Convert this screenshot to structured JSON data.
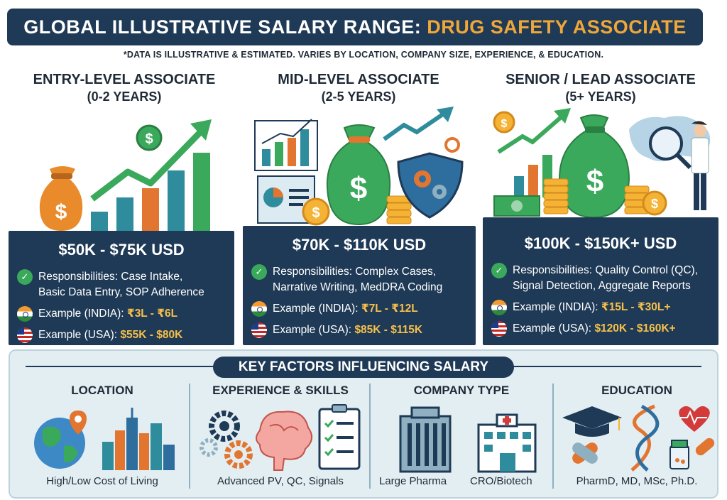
{
  "header": {
    "title_main": "GLOBAL ILLUSTRATIVE SALARY RANGE:",
    "title_accent": "DRUG SAFETY ASSOCIATE",
    "disclaimer": "*DATA IS ILLUSTRATIVE & ESTIMATED. VARIES BY LOCATION, COMPANY SIZE, EXPERIENCE, & EDUCATION."
  },
  "tiers": [
    {
      "title": "ENTRY-LEVEL ASSOCIATE",
      "years": "(0-2 YEARS)",
      "range": "$50K - $75K USD",
      "resp_label": "Responsibilities:",
      "resp_line1": "Case Intake,",
      "resp_line2": "Basic Data Entry, SOP Adherence",
      "india_label": "Example (INDIA):",
      "india_value": "₹3L - ₹6L",
      "usa_label": "Example (USA):",
      "usa_value": "$55K - $80K"
    },
    {
      "title": "MID-LEVEL ASSOCIATE",
      "years": "(2-5 YEARS)",
      "range": "$70K - $110K USD",
      "resp_label": "Responsibilities:",
      "resp_line1": "Complex Cases,",
      "resp_line2": "Narrative Writing, MedDRA Coding",
      "india_label": "Example (INDIA):",
      "india_value": "₹7L - ₹12L",
      "usa_label": "Example (USA):",
      "usa_value": "$85K - $115K"
    },
    {
      "title": "SENIOR / LEAD ASSOCIATE",
      "years": "(5+ YEARS)",
      "range": "$100K - $150K+ USD",
      "resp_label": "Responsibilities:",
      "resp_line1": "Quality Control (QC),",
      "resp_line2": "Signal Detection, Aggregate Reports",
      "india_label": "Example (INDIA):",
      "india_value": "₹15L - ₹30L+",
      "usa_label": "Example (USA):",
      "usa_value": "$120K - $160K+"
    }
  ],
  "factors": {
    "title": "KEY FACTORS INFLUENCING SALARY",
    "items": [
      {
        "title": "LOCATION",
        "caption": "High/Low Cost of Living"
      },
      {
        "title": "EXPERIENCE & SKILLS",
        "caption": "Advanced PV, QC, Signals"
      },
      {
        "title": "COMPANY TYPE",
        "caption_left": "Large Pharma",
        "caption_right": "CRO/Biotech"
      },
      {
        "title": "EDUCATION",
        "caption": "PharmD, MD, MSc, Ph.D."
      }
    ]
  },
  "icons": [
    "money-bag-icon",
    "bar-chart-icon",
    "trend-arrow-icon",
    "shield-gear-icon",
    "coin-icon",
    "magnifier-icon",
    "scientist-icon",
    "world-map-icon",
    "globe-pin-icon",
    "city-skyline-icon",
    "gears-icon",
    "brain-icon",
    "checklist-icon",
    "office-building-icon",
    "hospital-icon",
    "graduation-cap-icon",
    "dna-icon",
    "heart-pulse-icon",
    "pill-icon",
    "medicine-bottle-icon"
  ],
  "colors": {
    "navy": "#1f3a56",
    "accent_orange": "#f0a73a",
    "green": "#3aa95b",
    "gold": "#f6c04a",
    "panel": "#e3eef3"
  }
}
